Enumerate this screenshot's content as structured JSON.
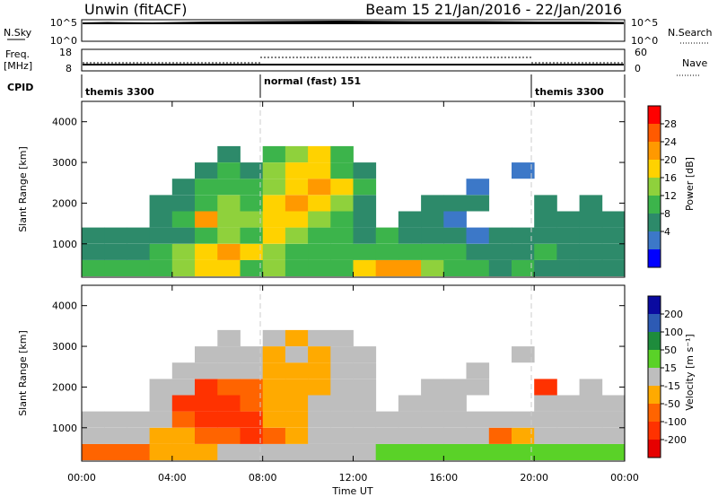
{
  "header": {
    "station": "Unwin (fitACF)",
    "beam_date": "Beam 15  21/Jan/2016 - 22/Jan/2016"
  },
  "summary": {
    "nsky_label": "N.Sky",
    "nsky_ticks": [
      "10^5",
      "10^0"
    ],
    "nsearch_label": "N.Search",
    "nsearch_ticks": [
      "10^5",
      "10^0"
    ],
    "freq_label": "Freq.",
    "freq_unit": "[MHz]",
    "freq_ticks": [
      "18",
      "8"
    ],
    "nave_label": "Nave",
    "nave_ticks": [
      "60",
      "0"
    ],
    "cpid_label": "CPID",
    "cpid_segments": [
      "themis 3300",
      "normal (fast) 151",
      "themis 3300"
    ]
  },
  "x_axis": {
    "ticks": [
      "00:00",
      "04:00",
      "08:00",
      "12:00",
      "16:00",
      "20:00",
      "00:00"
    ],
    "label": "Time UT"
  },
  "power_colorbar": {
    "label": "Power [dB]",
    "ticks": [
      "28",
      "24",
      "20",
      "16",
      "12",
      "8",
      "4"
    ],
    "colors": [
      "#ff0000",
      "#ff5a00",
      "#ff9900",
      "#ffd200",
      "#8fd13c",
      "#3cb44b",
      "#2d8a6a",
      "#3c78c8",
      "#0000ff"
    ]
  },
  "velocity_colorbar": {
    "label": "Velocity [m s⁻¹]",
    "ticks": [
      "200",
      "100",
      "50",
      "15",
      "-15",
      "-50",
      "-100",
      "-200"
    ],
    "colors": [
      "#0a0aa0",
      "#2d5ab4",
      "#1e8c3c",
      "#5ad228",
      "#bebebe",
      "#ffaa00",
      "#ff6400",
      "#ff3200",
      "#e60000"
    ]
  },
  "chart_data": [
    {
      "type": "heatmap",
      "panel": "power",
      "ylabel": "Slant Range [km]",
      "xlim": [
        "00:00",
        "24:00"
      ],
      "ylim": [
        180,
        4500
      ],
      "yticks": [
        1000,
        2000,
        3000,
        4000
      ],
      "x": [
        "00:00",
        "01:00",
        "02:00",
        "03:00",
        "04:00",
        "05:00",
        "06:00",
        "07:00",
        "08:00",
        "09:00",
        "10:00",
        "11:00",
        "12:00",
        "13:00",
        "14:00",
        "15:00",
        "16:00",
        "17:00",
        "18:00",
        "19:00",
        "20:00",
        "21:00",
        "22:00",
        "23:00"
      ],
      "y_bins_km": [
        400,
        800,
        1200,
        1600,
        2000,
        2400,
        2800,
        3200
      ],
      "values_dB": [
        [
          12,
          10,
          9,
          12,
          14,
          16,
          18,
          12,
          14,
          12,
          10,
          12,
          18,
          22,
          20,
          14,
          12,
          10,
          8,
          10,
          8,
          6,
          8,
          6
        ],
        [
          6,
          6,
          8,
          12,
          14,
          18,
          20,
          16,
          14,
          12,
          10,
          12,
          12,
          10,
          10,
          12,
          10,
          8,
          8,
          8,
          10,
          6,
          8,
          6
        ],
        [
          6,
          6,
          6,
          8,
          8,
          12,
          14,
          12,
          16,
          14,
          12,
          10,
          8,
          10,
          8,
          8,
          6,
          4,
          6,
          6,
          8,
          6,
          8,
          6
        ],
        [
          null,
          null,
          null,
          8,
          10,
          20,
          14,
          14,
          16,
          18,
          14,
          12,
          8,
          null,
          6,
          6,
          4,
          null,
          null,
          null,
          6,
          6,
          8,
          6
        ],
        [
          null,
          null,
          null,
          6,
          8,
          12,
          14,
          12,
          18,
          20,
          18,
          14,
          8,
          null,
          null,
          6,
          6,
          6,
          null,
          null,
          6,
          null,
          6,
          null
        ],
        [
          null,
          null,
          null,
          null,
          6,
          10,
          12,
          10,
          14,
          16,
          20,
          18,
          10,
          null,
          null,
          null,
          null,
          4,
          null,
          null,
          null,
          null,
          null,
          null
        ],
        [
          null,
          null,
          null,
          null,
          null,
          8,
          10,
          8,
          14,
          18,
          16,
          12,
          8,
          null,
          null,
          null,
          null,
          null,
          null,
          4,
          null,
          null,
          null,
          null
        ],
        [
          null,
          null,
          null,
          null,
          null,
          null,
          8,
          null,
          12,
          14,
          16,
          10,
          null,
          null,
          null,
          null,
          null,
          null,
          null,
          null,
          null,
          null,
          null,
          null
        ]
      ]
    },
    {
      "type": "heatmap",
      "panel": "velocity",
      "ylabel": "Slant Range [km]",
      "xlim": [
        "00:00",
        "24:00"
      ],
      "ylim": [
        180,
        4500
      ],
      "yticks": [
        1000,
        2000,
        3000,
        4000
      ],
      "x": [
        "00:00",
        "01:00",
        "02:00",
        "03:00",
        "04:00",
        "05:00",
        "06:00",
        "07:00",
        "08:00",
        "09:00",
        "10:00",
        "11:00",
        "12:00",
        "13:00",
        "14:00",
        "15:00",
        "16:00",
        "17:00",
        "18:00",
        "19:00",
        "20:00",
        "21:00",
        "22:00",
        "23:00"
      ],
      "y_bins_km": [
        400,
        800,
        1200,
        1600,
        2000,
        2400,
        2800,
        3200
      ],
      "values_ms": [
        [
          -80,
          -60,
          -60,
          -40,
          -40,
          -30,
          0,
          0,
          10,
          0,
          0,
          0,
          0,
          20,
          40,
          40,
          40,
          30,
          40,
          30,
          20,
          20,
          20,
          20
        ],
        [
          0,
          0,
          0,
          -20,
          -20,
          -60,
          -100,
          -200,
          -60,
          -20,
          0,
          0,
          0,
          0,
          0,
          0,
          0,
          0,
          -60,
          -20,
          0,
          0,
          0,
          0
        ],
        [
          0,
          0,
          0,
          0,
          -100,
          -200,
          -200,
          -150,
          -30,
          -20,
          0,
          0,
          0,
          0,
          0,
          0,
          0,
          0,
          0,
          0,
          0,
          0,
          0,
          0
        ],
        [
          null,
          null,
          null,
          0,
          -150,
          -200,
          -200,
          -100,
          -30,
          -40,
          0,
          0,
          0,
          null,
          0,
          0,
          0,
          null,
          null,
          null,
          0,
          0,
          0,
          0
        ],
        [
          null,
          null,
          null,
          0,
          0,
          -150,
          -100,
          -60,
          -30,
          -40,
          -20,
          0,
          0,
          null,
          null,
          0,
          0,
          0,
          null,
          null,
          -200,
          null,
          0,
          null
        ],
        [
          null,
          null,
          null,
          null,
          0,
          0,
          0,
          0,
          -20,
          -40,
          -20,
          0,
          0,
          null,
          null,
          null,
          null,
          0,
          null,
          null,
          null,
          null,
          null,
          null
        ],
        [
          null,
          null,
          null,
          null,
          null,
          0,
          0,
          0,
          -20,
          0,
          -20,
          0,
          0,
          null,
          null,
          null,
          null,
          null,
          null,
          0,
          null,
          null,
          null,
          null
        ],
        [
          null,
          null,
          null,
          null,
          null,
          null,
          0,
          null,
          0,
          -20,
          0,
          0,
          null,
          null,
          null,
          null,
          null,
          null,
          null,
          null,
          null,
          null,
          null,
          null
        ]
      ]
    }
  ]
}
